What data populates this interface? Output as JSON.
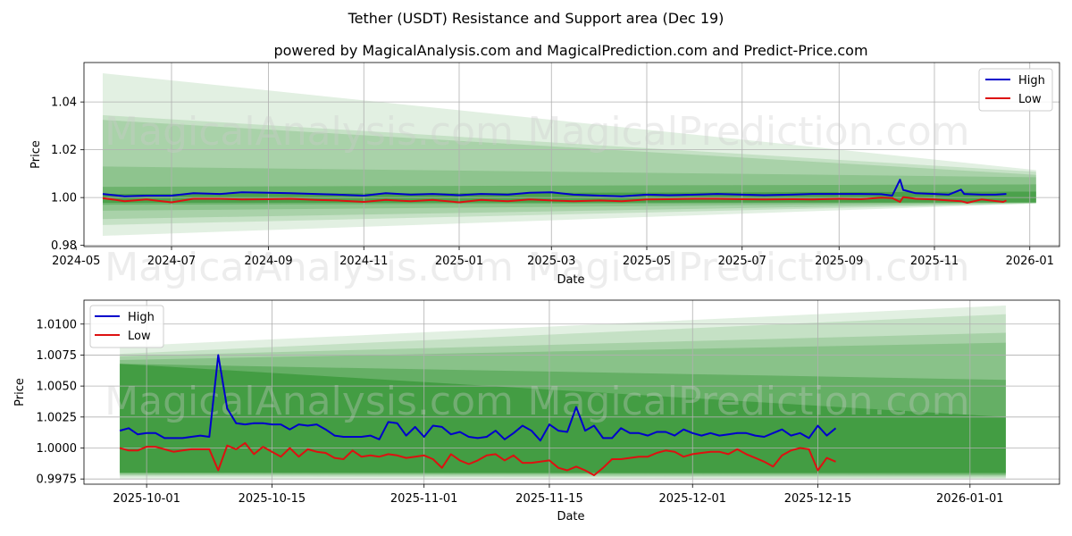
{
  "suptitle": "Tether (USDT) Resistance and Support area (Dec 19)",
  "watermarks": [
    "MagicalAnalysis.com",
    "MagicalPrediction.com"
  ],
  "colors": {
    "high": "#0000cc",
    "low": "#dd1111",
    "band": "#228b22",
    "grid": "#b0b0b0"
  },
  "chart_data": [
    {
      "type": "line",
      "title": "powered by MagicalAnalysis.com and MagicalPrediction.com and Predict-Price.com",
      "xlabel": "Date",
      "ylabel": "Price",
      "xlim": [
        "2024-05-06",
        "2026-01-20"
      ],
      "ylim": [
        0.9795,
        1.0565
      ],
      "xticks": [
        {
          "date": "2024-05-01",
          "label": "2024-05"
        },
        {
          "date": "2024-07-01",
          "label": "2024-07"
        },
        {
          "date": "2024-09-01",
          "label": "2024-09"
        },
        {
          "date": "2024-11-01",
          "label": "2024-11"
        },
        {
          "date": "2025-01-01",
          "label": "2025-01"
        },
        {
          "date": "2025-03-01",
          "label": "2025-03"
        },
        {
          "date": "2025-05-01",
          "label": "2025-05"
        },
        {
          "date": "2025-07-01",
          "label": "2025-07"
        },
        {
          "date": "2025-09-01",
          "label": "2025-09"
        },
        {
          "date": "2025-11-01",
          "label": "2025-11"
        },
        {
          "date": "2026-01-01",
          "label": "2026-01"
        }
      ],
      "yticks": [
        {
          "value": 0.98,
          "label": "0.98"
        },
        {
          "value": 1.0,
          "label": "1.00"
        },
        {
          "value": 1.02,
          "label": "1.02"
        },
        {
          "value": 1.04,
          "label": "1.04"
        }
      ],
      "legend": {
        "position": "top-right",
        "entries": [
          "High",
          "Low"
        ]
      },
      "bands": [
        {
          "alpha": 0.13,
          "start": "2024-05-18",
          "end": "2026-01-05",
          "start_range": [
            0.984,
            1.052
          ],
          "end_range": [
            0.9975,
            1.0115
          ]
        },
        {
          "alpha": 0.15,
          "start": "2024-05-18",
          "end": "2026-01-05",
          "start_range": [
            0.9885,
            1.0345
          ],
          "end_range": [
            0.9975,
            1.0108
          ]
        },
        {
          "alpha": 0.17,
          "start": "2024-05-18",
          "end": "2026-01-05",
          "start_range": [
            0.991,
            1.0325
          ],
          "end_range": [
            0.9977,
            1.0095
          ]
        },
        {
          "alpha": 0.2,
          "start": "2024-05-18",
          "end": "2026-01-05",
          "start_range": [
            0.9945,
            1.013
          ],
          "end_range": [
            0.9978,
            1.0085
          ]
        },
        {
          "alpha": 0.3,
          "start": "2024-05-18",
          "end": "2026-01-05",
          "start_range": [
            0.997,
            1.0045
          ],
          "end_range": [
            0.9979,
            1.0055
          ]
        },
        {
          "alpha": 0.45,
          "start": "2024-05-18",
          "end": "2026-01-05",
          "start_range": [
            0.9978,
            1.0015
          ],
          "end_range": [
            0.998,
            1.0025
          ]
        }
      ],
      "series": [
        {
          "name": "High",
          "color": "#0000cc",
          "x": [
            "2024-05-18",
            "2024-06-01",
            "2024-06-15",
            "2024-07-01",
            "2024-07-15",
            "2024-08-01",
            "2024-08-15",
            "2024-09-01",
            "2024-09-15",
            "2024-10-01",
            "2024-10-15",
            "2024-11-01",
            "2024-11-15",
            "2024-12-01",
            "2024-12-15",
            "2025-01-01",
            "2025-01-15",
            "2025-02-01",
            "2025-02-15",
            "2025-03-01",
            "2025-03-15",
            "2025-04-01",
            "2025-04-15",
            "2025-05-01",
            "2025-05-15",
            "2025-06-01",
            "2025-06-15",
            "2025-07-01",
            "2025-07-15",
            "2025-08-01",
            "2025-08-15",
            "2025-09-01",
            "2025-09-15",
            "2025-09-28",
            "2025-10-05",
            "2025-10-10",
            "2025-10-12",
            "2025-10-20",
            "2025-11-01",
            "2025-11-10",
            "2025-11-18",
            "2025-11-20",
            "2025-12-01",
            "2025-12-10",
            "2025-12-17"
          ],
          "values": [
            1.0015,
            1.0005,
            1.0008,
            1.0008,
            1.0018,
            1.0015,
            1.0022,
            1.002,
            1.0018,
            1.0015,
            1.0012,
            1.0008,
            1.0018,
            1.0012,
            1.0015,
            1.001,
            1.0015,
            1.0012,
            1.002,
            1.0022,
            1.0012,
            1.0008,
            1.0005,
            1.0012,
            1.001,
            1.0012,
            1.0015,
            1.0012,
            1.001,
            1.0012,
            1.0015,
            1.0015,
            1.0015,
            1.0014,
            1.0008,
            1.0075,
            1.0032,
            1.0018,
            1.0015,
            1.0012,
            1.0033,
            1.0015,
            1.0012,
            1.0012,
            1.0015
          ]
        },
        {
          "name": "Low",
          "color": "#dd1111",
          "x": [
            "2024-05-18",
            "2024-06-01",
            "2024-06-15",
            "2024-07-01",
            "2024-07-15",
            "2024-08-01",
            "2024-08-15",
            "2024-09-01",
            "2024-09-15",
            "2024-10-01",
            "2024-10-15",
            "2024-11-01",
            "2024-11-15",
            "2024-12-01",
            "2024-12-15",
            "2025-01-01",
            "2025-01-15",
            "2025-02-01",
            "2025-02-15",
            "2025-03-01",
            "2025-03-15",
            "2025-04-01",
            "2025-04-15",
            "2025-05-01",
            "2025-05-15",
            "2025-06-01",
            "2025-06-15",
            "2025-07-01",
            "2025-07-15",
            "2025-08-01",
            "2025-08-15",
            "2025-09-01",
            "2025-09-15",
            "2025-09-28",
            "2025-10-05",
            "2025-10-10",
            "2025-10-12",
            "2025-10-20",
            "2025-11-01",
            "2025-11-10",
            "2025-11-18",
            "2025-11-22",
            "2025-12-01",
            "2025-12-15",
            "2025-12-17"
          ],
          "values": [
            0.9998,
            0.9985,
            0.9992,
            0.998,
            0.9995,
            0.9995,
            0.9992,
            0.9993,
            0.9995,
            0.999,
            0.9988,
            0.9982,
            0.999,
            0.9985,
            0.999,
            0.998,
            0.999,
            0.9985,
            0.9992,
            0.9988,
            0.9985,
            0.9988,
            0.9985,
            0.9992,
            0.9993,
            0.9995,
            0.9995,
            0.9993,
            0.9992,
            0.9993,
            0.9992,
            0.9995,
            0.9993,
            1.0,
            0.9998,
            0.9982,
            1.0002,
            0.9995,
            0.9992,
            0.9988,
            0.9985,
            0.9978,
            0.9992,
            0.9982,
            0.9988
          ]
        }
      ]
    },
    {
      "type": "line",
      "title": "",
      "xlabel": "Date",
      "ylabel": "Price",
      "xlim": [
        "2025-09-24",
        "2026-01-11"
      ],
      "ylim": [
        0.99708,
        1.01193
      ],
      "xticks": [
        {
          "date": "2025-10-01",
          "label": "2025-10-01"
        },
        {
          "date": "2025-10-15",
          "label": "2025-10-15"
        },
        {
          "date": "2025-11-01",
          "label": "2025-11-01"
        },
        {
          "date": "2025-11-15",
          "label": "2025-11-15"
        },
        {
          "date": "2025-12-01",
          "label": "2025-12-01"
        },
        {
          "date": "2025-12-15",
          "label": "2025-12-15"
        },
        {
          "date": "2026-01-01",
          "label": "2026-01-01"
        }
      ],
      "yticks": [
        {
          "value": 0.9975,
          "label": "0.9975"
        },
        {
          "value": 1.0,
          "label": "1.0000"
        },
        {
          "value": 1.0025,
          "label": "1.0025"
        },
        {
          "value": 1.005,
          "label": "1.0050"
        },
        {
          "value": 1.0075,
          "label": "1.0075"
        },
        {
          "value": 1.01,
          "label": "1.0100"
        }
      ],
      "legend": {
        "position": "top-left",
        "entries": [
          "High",
          "Low"
        ]
      },
      "bands": [
        {
          "alpha": 0.13,
          "start": "2025-09-28",
          "end": "2026-01-05",
          "start_range": [
            0.9975,
            1.0082
          ],
          "end_range": [
            0.9975,
            1.0115
          ]
        },
        {
          "alpha": 0.15,
          "start": "2025-09-28",
          "end": "2026-01-05",
          "start_range": [
            0.9977,
            1.0076
          ],
          "end_range": [
            0.9976,
            1.0108
          ]
        },
        {
          "alpha": 0.18,
          "start": "2025-09-28",
          "end": "2026-01-05",
          "start_range": [
            0.9978,
            1.0074
          ],
          "end_range": [
            0.9977,
            1.0093
          ]
        },
        {
          "alpha": 0.22,
          "start": "2025-09-28",
          "end": "2026-01-05",
          "start_range": [
            0.9979,
            1.0071
          ],
          "end_range": [
            0.9978,
            1.0085
          ]
        },
        {
          "alpha": 0.35,
          "start": "2025-09-28",
          "end": "2026-01-05",
          "start_range": [
            0.998,
            1.0068
          ],
          "end_range": [
            0.9979,
            1.0055
          ]
        },
        {
          "alpha": 0.5,
          "start": "2025-09-28",
          "end": "2026-01-05",
          "start_range": [
            0.998,
            1.0068
          ],
          "end_range": [
            0.998,
            1.0025
          ]
        }
      ],
      "series": [
        {
          "name": "High",
          "color": "#0000cc",
          "x": [
            "2025-09-28",
            "2025-09-29",
            "2025-09-30",
            "2025-10-01",
            "2025-10-02",
            "2025-10-03",
            "2025-10-04",
            "2025-10-05",
            "2025-10-06",
            "2025-10-07",
            "2025-10-08",
            "2025-10-09",
            "2025-10-10",
            "2025-10-11",
            "2025-10-12",
            "2025-10-13",
            "2025-10-14",
            "2025-10-15",
            "2025-10-16",
            "2025-10-17",
            "2025-10-18",
            "2025-10-19",
            "2025-10-20",
            "2025-10-21",
            "2025-10-22",
            "2025-10-23",
            "2025-10-24",
            "2025-10-25",
            "2025-10-26",
            "2025-10-27",
            "2025-10-28",
            "2025-10-29",
            "2025-10-30",
            "2025-10-31",
            "2025-11-01",
            "2025-11-02",
            "2025-11-03",
            "2025-11-04",
            "2025-11-05",
            "2025-11-06",
            "2025-11-07",
            "2025-11-08",
            "2025-11-09",
            "2025-11-10",
            "2025-11-11",
            "2025-11-12",
            "2025-11-13",
            "2025-11-14",
            "2025-11-15",
            "2025-11-16",
            "2025-11-17",
            "2025-11-18",
            "2025-11-19",
            "2025-11-20",
            "2025-11-21",
            "2025-11-22",
            "2025-11-23",
            "2025-11-24",
            "2025-11-25",
            "2025-11-26",
            "2025-11-27",
            "2025-11-28",
            "2025-11-29",
            "2025-11-30",
            "2025-12-01",
            "2025-12-02",
            "2025-12-03",
            "2025-12-04",
            "2025-12-05",
            "2025-12-06",
            "2025-12-07",
            "2025-12-08",
            "2025-12-09",
            "2025-12-10",
            "2025-12-11",
            "2025-12-12",
            "2025-12-13",
            "2025-12-14",
            "2025-12-15",
            "2025-12-16",
            "2025-12-17"
          ],
          "values": [
            1.0014,
            1.0016,
            1.0011,
            1.0012,
            1.0012,
            1.0008,
            1.0008,
            1.0008,
            1.0009,
            1.001,
            1.0009,
            1.0075,
            1.0032,
            1.002,
            1.0019,
            1.002,
            1.002,
            1.0019,
            1.0019,
            1.0015,
            1.0019,
            1.0018,
            1.0019,
            1.0015,
            1.001,
            1.0009,
            1.0009,
            1.0009,
            1.001,
            1.0007,
            1.0021,
            1.002,
            1.001,
            1.0017,
            1.0009,
            1.0018,
            1.0017,
            1.0011,
            1.0013,
            1.0009,
            1.0008,
            1.0009,
            1.0014,
            1.0007,
            1.0012,
            1.0018,
            1.0014,
            1.0006,
            1.0019,
            1.0014,
            1.0013,
            1.0033,
            1.0014,
            1.0018,
            1.0008,
            1.0008,
            1.0016,
            1.0012,
            1.0012,
            1.001,
            1.0013,
            1.0013,
            1.001,
            1.0015,
            1.0012,
            1.001,
            1.0012,
            1.001,
            1.0011,
            1.0012,
            1.0012,
            1.001,
            1.0009,
            1.0012,
            1.0015,
            1.001,
            1.0012,
            1.0008,
            1.0018,
            1.001,
            1.0016
          ]
        },
        {
          "name": "Low",
          "color": "#dd1111",
          "x": [
            "2025-09-28",
            "2025-09-29",
            "2025-09-30",
            "2025-10-01",
            "2025-10-02",
            "2025-10-03",
            "2025-10-04",
            "2025-10-05",
            "2025-10-06",
            "2025-10-07",
            "2025-10-08",
            "2025-10-09",
            "2025-10-10",
            "2025-10-11",
            "2025-10-12",
            "2025-10-13",
            "2025-10-14",
            "2025-10-15",
            "2025-10-16",
            "2025-10-17",
            "2025-10-18",
            "2025-10-19",
            "2025-10-20",
            "2025-10-21",
            "2025-10-22",
            "2025-10-23",
            "2025-10-24",
            "2025-10-25",
            "2025-10-26",
            "2025-10-27",
            "2025-10-28",
            "2025-10-29",
            "2025-10-30",
            "2025-10-31",
            "2025-11-01",
            "2025-11-02",
            "2025-11-03",
            "2025-11-04",
            "2025-11-05",
            "2025-11-06",
            "2025-11-07",
            "2025-11-08",
            "2025-11-09",
            "2025-11-10",
            "2025-11-11",
            "2025-11-12",
            "2025-11-13",
            "2025-11-14",
            "2025-11-15",
            "2025-11-16",
            "2025-11-17",
            "2025-11-18",
            "2025-11-19",
            "2025-11-20",
            "2025-11-21",
            "2025-11-22",
            "2025-11-23",
            "2025-11-24",
            "2025-11-25",
            "2025-11-26",
            "2025-11-27",
            "2025-11-28",
            "2025-11-29",
            "2025-11-30",
            "2025-12-01",
            "2025-12-02",
            "2025-12-03",
            "2025-12-04",
            "2025-12-05",
            "2025-12-06",
            "2025-12-07",
            "2025-12-08",
            "2025-12-09",
            "2025-12-10",
            "2025-12-11",
            "2025-12-12",
            "2025-12-13",
            "2025-12-14",
            "2025-12-15",
            "2025-12-16",
            "2025-12-17"
          ],
          "values": [
            1.0,
            0.9998,
            0.9998,
            1.0001,
            1.0001,
            0.9999,
            0.9997,
            0.9998,
            0.9999,
            0.9999,
            0.9999,
            0.9982,
            1.0002,
            0.9999,
            1.0004,
            0.9995,
            1.0001,
            0.9997,
            0.9993,
            1.0,
            0.9993,
            0.9999,
            0.9997,
            0.9996,
            0.9992,
            0.9991,
            0.9998,
            0.9993,
            0.9994,
            0.9993,
            0.9995,
            0.9994,
            0.9992,
            0.9993,
            0.9994,
            0.9991,
            0.9984,
            0.9995,
            0.999,
            0.9987,
            0.999,
            0.9994,
            0.9995,
            0.999,
            0.9994,
            0.9988,
            0.9988,
            0.9989,
            0.999,
            0.9984,
            0.9982,
            0.9985,
            0.9982,
            0.9978,
            0.9984,
            0.9991,
            0.9991,
            0.9992,
            0.9993,
            0.9993,
            0.9996,
            0.9998,
            0.9997,
            0.9993,
            0.9995,
            0.9996,
            0.9997,
            0.9997,
            0.9995,
            0.9999,
            0.9995,
            0.9992,
            0.9989,
            0.9985,
            0.9994,
            0.9998,
            1.0,
            0.9999,
            0.9982,
            0.9992,
            0.9989
          ]
        }
      ]
    }
  ]
}
